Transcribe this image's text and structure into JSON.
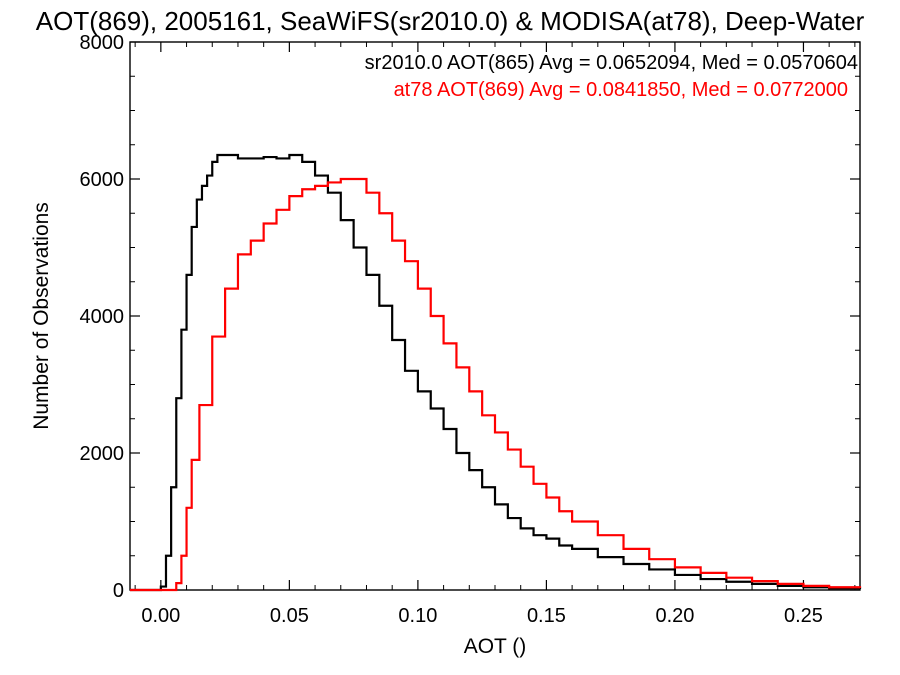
{
  "chart_data": {
    "type": "line",
    "title": "AOT(869), 2005161, SeaWiFS(sr2010.0) & MODISA(at78), Deep-Water",
    "xlabel": "AOT ()",
    "ylabel": "Number of Observations",
    "xlim": [
      -0.012,
      0.272
    ],
    "ylim": [
      0,
      8000
    ],
    "xticks": [
      0.0,
      0.05,
      0.1,
      0.15,
      0.2,
      0.25
    ],
    "xtick_labels": [
      "0.00",
      "0.05",
      "0.10",
      "0.15",
      "0.20",
      "0.25"
    ],
    "yticks": [
      0,
      2000,
      4000,
      6000,
      8000
    ],
    "ytick_labels": [
      "0",
      "2000",
      "4000",
      "6000",
      "8000"
    ],
    "grid": false,
    "series": [
      {
        "name": "sr2010.0 AOT(865) Avg = 0.0652094, Med = 0.0570604",
        "color": "#000000",
        "step": "histogram",
        "x": [
          -0.012,
          -0.005,
          0.0,
          0.002,
          0.004,
          0.006,
          0.008,
          0.01,
          0.012,
          0.014,
          0.016,
          0.018,
          0.02,
          0.022,
          0.025,
          0.03,
          0.035,
          0.04,
          0.045,
          0.05,
          0.055,
          0.06,
          0.065,
          0.07,
          0.075,
          0.08,
          0.085,
          0.09,
          0.095,
          0.1,
          0.105,
          0.11,
          0.115,
          0.12,
          0.125,
          0.13,
          0.135,
          0.14,
          0.145,
          0.15,
          0.155,
          0.16,
          0.17,
          0.18,
          0.19,
          0.2,
          0.21,
          0.22,
          0.23,
          0.24,
          0.25,
          0.26,
          0.272
        ],
        "y": [
          0,
          0,
          50,
          500,
          1500,
          2800,
          3800,
          4600,
          5300,
          5700,
          5900,
          6050,
          6250,
          6350,
          6350,
          6300,
          6300,
          6320,
          6300,
          6350,
          6250,
          6050,
          5800,
          5400,
          5000,
          4600,
          4150,
          3650,
          3200,
          2900,
          2650,
          2350,
          2000,
          1750,
          1500,
          1250,
          1050,
          900,
          800,
          750,
          650,
          600,
          480,
          380,
          300,
          220,
          160,
          120,
          90,
          60,
          40,
          25,
          15
        ]
      },
      {
        "name": "at78 AOT(869) Avg = 0.0841850, Med = 0.0772000",
        "color": "#ff0000",
        "step": "histogram",
        "x": [
          -0.012,
          0.004,
          0.006,
          0.008,
          0.01,
          0.012,
          0.015,
          0.02,
          0.025,
          0.03,
          0.035,
          0.04,
          0.045,
          0.05,
          0.055,
          0.06,
          0.065,
          0.07,
          0.075,
          0.08,
          0.085,
          0.09,
          0.095,
          0.1,
          0.105,
          0.11,
          0.115,
          0.12,
          0.125,
          0.13,
          0.135,
          0.14,
          0.145,
          0.15,
          0.155,
          0.16,
          0.17,
          0.18,
          0.19,
          0.2,
          0.21,
          0.22,
          0.23,
          0.24,
          0.25,
          0.26,
          0.272
        ],
        "y": [
          0,
          0,
          100,
          500,
          1200,
          1900,
          2700,
          3700,
          4400,
          4900,
          5100,
          5350,
          5550,
          5750,
          5850,
          5900,
          5950,
          6000,
          6000,
          5800,
          5500,
          5100,
          4800,
          4400,
          4000,
          3600,
          3250,
          2900,
          2550,
          2300,
          2050,
          1800,
          1550,
          1350,
          1150,
          1000,
          800,
          600,
          450,
          330,
          250,
          180,
          130,
          90,
          60,
          40,
          30
        ]
      }
    ],
    "annotations": [
      {
        "text": "sr2010.0 AOT(865) Avg = 0.0652094, Med = 0.0570604",
        "color": "#000000"
      },
      {
        "text": "at78 AOT(869) Avg = 0.0841850, Med = 0.0772000",
        "color": "#ff0000"
      }
    ]
  }
}
